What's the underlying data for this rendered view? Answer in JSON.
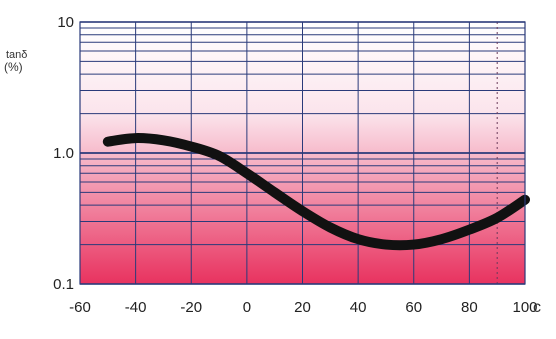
{
  "chart_data": {
    "type": "line",
    "ylabel": "tanδ",
    "ylabel_unit": "(%)",
    "xlabel": "c",
    "y_scale": "log",
    "xlim": [
      -60,
      100
    ],
    "ylim": [
      0.1,
      10
    ],
    "x_ticks": [
      "-60",
      "-40",
      "-20",
      "0",
      "20",
      "40",
      "60",
      "80",
      "100"
    ],
    "y_ticks": [
      "0.1",
      "1.0",
      "10"
    ],
    "grid": true,
    "background_gradient": [
      "#ffffff",
      "#e8325f"
    ],
    "line_color": "#111111",
    "reference_line_x": 90,
    "series": [
      {
        "x": [
          -50,
          -40,
          -30,
          -20,
          -10,
          0,
          10,
          20,
          30,
          40,
          50,
          60,
          70,
          80,
          90,
          100
        ],
        "y": [
          1.22,
          1.3,
          1.25,
          1.12,
          0.95,
          0.7,
          0.5,
          0.36,
          0.27,
          0.22,
          0.2,
          0.2,
          0.22,
          0.26,
          0.32,
          0.44
        ]
      }
    ]
  }
}
